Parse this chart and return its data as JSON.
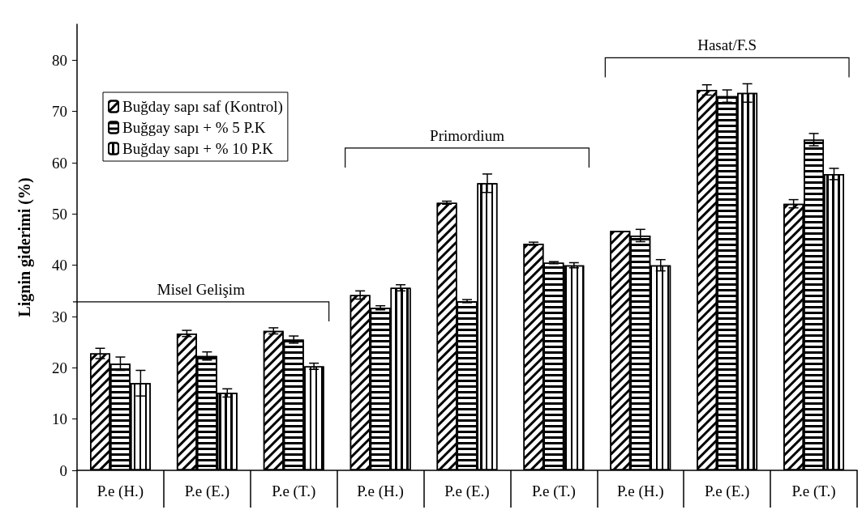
{
  "chart_data": {
    "type": "bar",
    "ylabel": "Lignin giderimi (%)",
    "categories": [
      "P.e (H.)",
      "P.e (E.)",
      "P.e (T.)",
      "P.e (H.)",
      "P.e (E.)",
      "P.e (T.)",
      "P.e (H.)",
      "P.e (E.)",
      "P.e (T.)"
    ],
    "series": [
      {
        "name": "Buğday sapı saf (Kontrol)",
        "color": "#ffffff",
        "values": [
          22.8,
          26.7,
          27.2,
          34.2,
          52.2,
          44.2,
          46.7,
          74.2,
          52.0
        ],
        "errors": [
          1.0,
          0.6,
          0.6,
          0.8,
          0.3,
          0.3,
          null,
          1.0,
          0.8
        ]
      },
      {
        "name": "Buğgay sapı + % 5 P.K",
        "color": "#ffffff",
        "values": [
          20.8,
          22.3,
          25.5,
          31.7,
          33.0,
          40.5,
          45.8,
          73.0,
          64.5
        ],
        "errors": [
          1.3,
          0.8,
          0.7,
          0.4,
          0.3,
          0.2,
          1.2,
          1.2,
          1.2
        ]
      },
      {
        "name": "Buğday sapı + % 10 P.K",
        "color": "#ffffff",
        "values": [
          17.0,
          15.1,
          20.3,
          35.6,
          56.0,
          40.0,
          40.0,
          73.6,
          57.8
        ],
        "errors": [
          2.5,
          0.8,
          0.6,
          0.6,
          1.8,
          0.5,
          1.1,
          1.8,
          1.1
        ]
      }
    ],
    "ylim": [
      0,
      87
    ],
    "yticks": [
      0,
      10,
      20,
      30,
      40,
      50,
      60,
      70,
      80
    ],
    "annotations": [
      "Misel Gelişim",
      "Primordium",
      "Hasat/F.S"
    ],
    "grid": false,
    "legend": "top left"
  }
}
